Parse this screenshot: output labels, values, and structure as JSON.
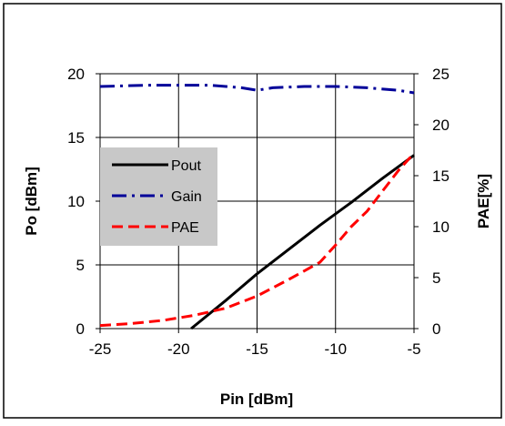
{
  "chart_data": {
    "type": "line",
    "xlabel": "Pin [dBm]",
    "ylabel": "Po [dBm]",
    "y2label": "PAE[%]",
    "xlim": [
      -25,
      -5
    ],
    "ylim": [
      0,
      20
    ],
    "y2lim": [
      0,
      25
    ],
    "xticks": [
      -25,
      -20,
      -15,
      -10,
      -5
    ],
    "yticks": [
      0,
      5,
      10,
      15,
      20
    ],
    "y2ticks": [
      0,
      5,
      10,
      15,
      20,
      25
    ],
    "grid": true,
    "legend_position": "left",
    "series": [
      {
        "name": "Pout",
        "axis": "left",
        "color": "#000000",
        "style": "solid",
        "x": [
          -19.2,
          -17,
          -15,
          -13,
          -11,
          -9,
          -7,
          -5
        ],
        "y": [
          0,
          2.2,
          4.3,
          6.2,
          8.1,
          9.9,
          11.8,
          13.6
        ]
      },
      {
        "name": "Gain",
        "axis": "left",
        "color": "#000099",
        "style": "dashdot",
        "x": [
          -25,
          -22,
          -20,
          -18,
          -16,
          -15,
          -14,
          -12,
          -10,
          -8,
          -6,
          -5
        ],
        "y": [
          19.0,
          19.1,
          19.1,
          19.1,
          18.9,
          18.7,
          18.9,
          19.0,
          19.0,
          18.9,
          18.7,
          18.5
        ]
      },
      {
        "name": "PAE",
        "axis": "right",
        "color": "#ff0000",
        "style": "dashed",
        "x": [
          -25,
          -23,
          -21,
          -19,
          -17,
          -15,
          -13,
          -11,
          -10,
          -9,
          -8,
          -7,
          -6,
          -5
        ],
        "y": [
          0.3,
          0.5,
          0.8,
          1.3,
          2.0,
          3.2,
          4.8,
          6.5,
          8.2,
          10.0,
          11.5,
          13.5,
          15.5,
          17.2
        ]
      }
    ]
  }
}
